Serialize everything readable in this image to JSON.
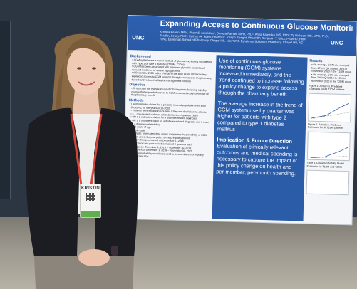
{
  "poster": {
    "title": "Expanding Access to Continuous Glucose Monitoring Systems through the Pharmacy",
    "authors_line1": "Kristina Kearin, MPH, PharmD candidate¹; Shweta Pathak, MPH, PhD²; Anna Kaleeska, MS, PhD²; Ty Dickson, MS, MPH, PhD²;",
    "authors_line2": "Bradley Soucy, PhD¹; Kathryn A. Fuller, PharmD²; Joseph Albright, PharmD²; Benjamin Y. Urick, PharmD, PhD²",
    "affiliation": "¹UNC Eshelman School of Pharmacy, Chapel Hill, NC; ²UNC Eshelman School of Pharmacy, Chapel Hill, NC",
    "logo_left": "UNC",
    "logo_right": "UNC",
    "background_head": "Background",
    "background_bullets": [
      "CGM systems are a newer method of glucose monitoring for patients with Type 1 or Type 2 diabetes (T1DM, T2DM)",
      "CGM has been associated with improved glycemic control and reduced incidence of severe hypoglycemia",
      "A December 2018 policy change to the Blue Cross NC formulary expanded access to CGM systems through coverage on the pharmacy benefit and reduced utilization management controls"
    ],
    "objective_head": "Objective",
    "objective_bullets": [
      "To describe the change in use of CGM systems following a policy change that expanded access to CGM systems through coverage on the pharmacy benefit"
    ],
    "methods_head": "Methods",
    "methods_bullets": [
      "Administrative claims for a privately insured population from Blue Cross NC for the years 2016-2020",
      "Patients were eligible in a quarter if they met the following criteria:",
      "≥ 1 non-denied, diabetes-related, non-zero inpatient claim",
      "OR ≥ 2 outpatient claims for a diabetes-related diagnosis",
      "OR ≥ 1 outpatient claim for a diabetes-related diagnosis and 1 claim for a diabetes-related drug",
      "<65 years of age",
      "Insulin user",
      "Analysis: Interrupted time series comparing the probability of CGM system use in the post policy to the pre-policy period",
      "Policy change occurred on December 1, 2018",
      "Pre-period and post-period contained 8 quarters each",
      "Pre-period: December 1, 2016 – November 30, 2018",
      "Post-period: December 1, 2018 – November 30, 2020",
      "A linear probability model was used to assess the trend of policy uptake over time"
    ],
    "mid_text1": "Use of continuous glucose monitoring (CGM) systems increased immediately, and the trend continued to increase following a policy change to expand access through the pharmacy benefit",
    "mid_text2": "The average increase in the trend of CGM system use by quarter was higher for patients with type 2 compared to type 1 diabetes mellitus",
    "mid_head": "Implication & Future Direction",
    "mid_text3": "Evaluation of clinically relevant outcomes and medical spending is necessary to capture the impact of this policy change on health and per-member, per-month spending.",
    "results_head": "Results",
    "results_bullets": [
      "On average, CGM use changed from 17% in Q4 2016 to 36% in November 2020 in the T1DM group",
      "On average, CGM use changed from 2% in Q4 2016 to 10% in November 2020 in the T2DM group"
    ],
    "figure1_caption": "Figure 1. Actual vs. Predicted Estimates for All T1DM patients",
    "figure2_caption": "Figure 2. Actual vs. Predicted Estimates for All T2DM patients",
    "table_caption": "Table 1. Linear Probability Model Estimates for T1DM and T2DM"
  },
  "badge": {
    "name": "KRISTIN"
  },
  "colors": {
    "poster_blue": "#2b5ca8",
    "jacket": "#1c1d22",
    "lanyard": "#d8463a",
    "badge_stripe": "#5fb04a"
  }
}
